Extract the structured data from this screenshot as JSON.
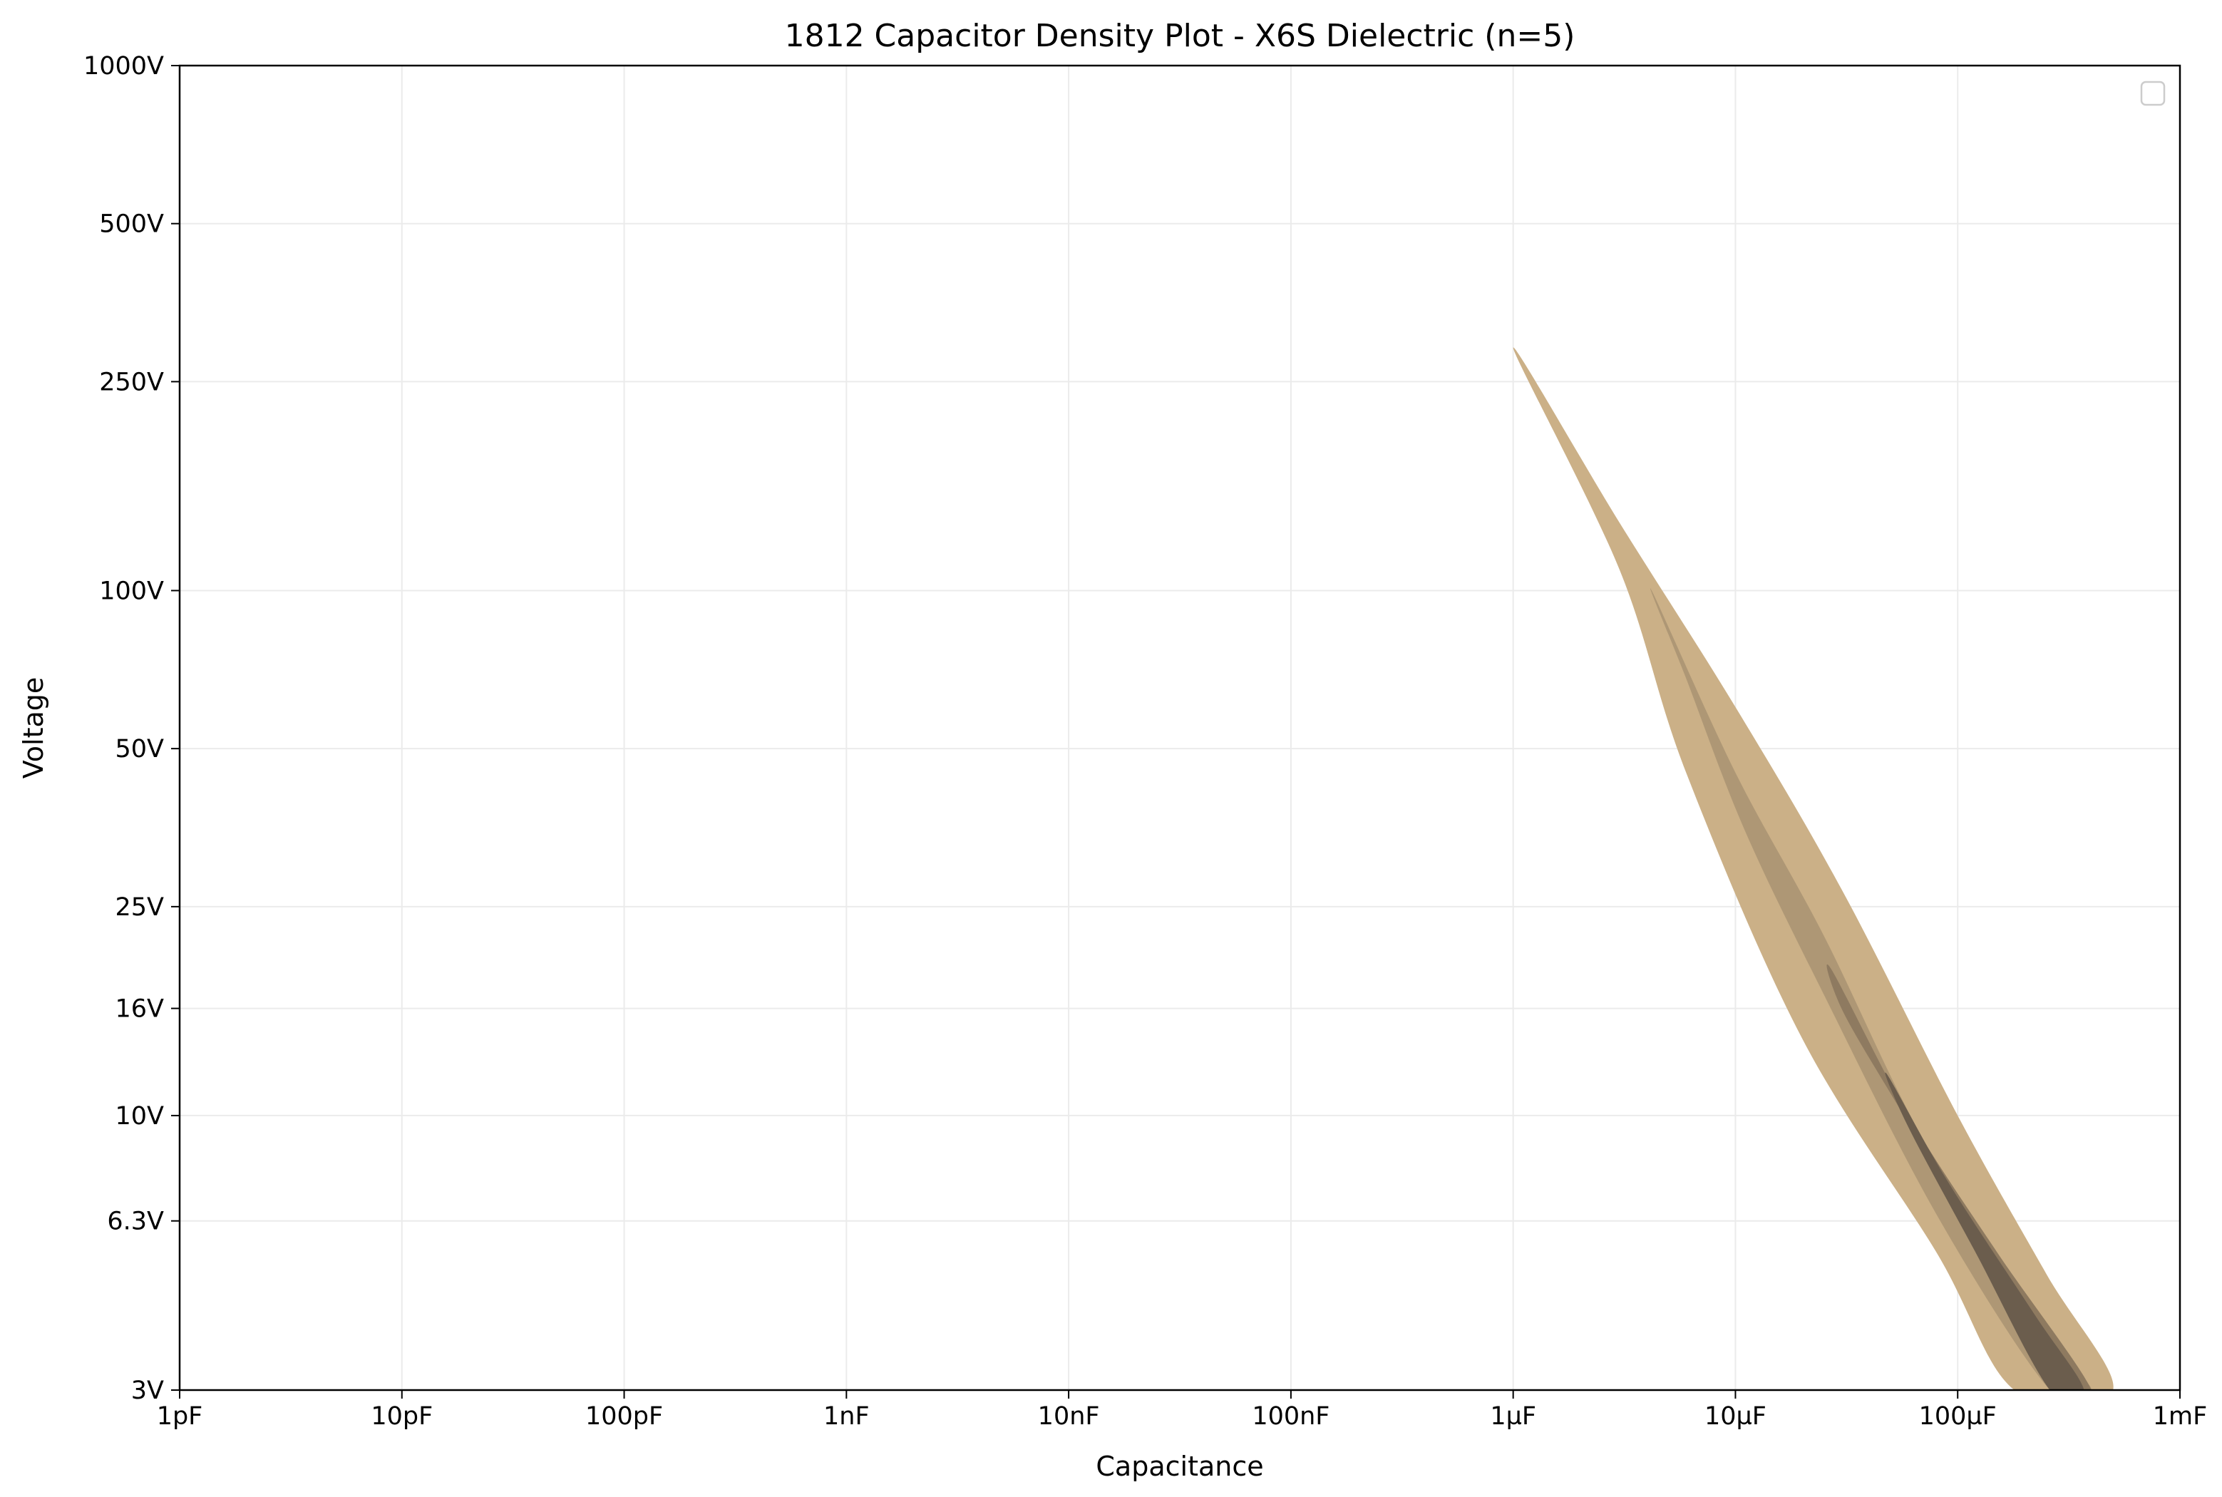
{
  "chart_data": {
    "type": "density",
    "title": "1812 Capacitor Density Plot - X6S Dielectric (n=5)",
    "xlabel": "Capacitance",
    "ylabel": "Voltage",
    "x_scale": "log",
    "y_scale": "log",
    "xlim_farads": [
      1e-12,
      0.001
    ],
    "ylim_volts": [
      3,
      1000
    ],
    "x_ticks": [
      {
        "value": 1e-12,
        "label": "1pF"
      },
      {
        "value": 1e-11,
        "label": "10pF"
      },
      {
        "value": 1e-10,
        "label": "100pF"
      },
      {
        "value": 1e-09,
        "label": "1nF"
      },
      {
        "value": 1e-08,
        "label": "10nF"
      },
      {
        "value": 1e-07,
        "label": "100nF"
      },
      {
        "value": 1e-06,
        "label": "1µF"
      },
      {
        "value": 1e-05,
        "label": "10µF"
      },
      {
        "value": 0.0001,
        "label": "100µF"
      },
      {
        "value": 0.001,
        "label": "1mF"
      }
    ],
    "y_ticks": [
      {
        "value": 3,
        "label": "3V"
      },
      {
        "value": 6.3,
        "label": "6.3V"
      },
      {
        "value": 10,
        "label": "10V"
      },
      {
        "value": 16,
        "label": "16V"
      },
      {
        "value": 25,
        "label": "25V"
      },
      {
        "value": 50,
        "label": "50V"
      },
      {
        "value": 100,
        "label": "100V"
      },
      {
        "value": 250,
        "label": "250V"
      },
      {
        "value": 500,
        "label": "500V"
      },
      {
        "value": 1000,
        "label": "1000V"
      }
    ],
    "grid": true,
    "legend": {
      "placement": "top-right",
      "entries": []
    },
    "density_levels": [
      {
        "level": 1,
        "color": "#cbb087",
        "outline": [
          [
            1e-06,
            290
          ],
          [
            3e-06,
            135
          ],
          [
            1e-05,
            60
          ],
          [
            3e-05,
            27
          ],
          [
            0.0001,
            10
          ],
          [
            0.00025,
            5
          ],
          [
            0.0005,
            3
          ],
          [
            0.00018,
            3
          ],
          [
            8e-05,
            5.5
          ],
          [
            2e-05,
            14
          ],
          [
            6e-06,
            45
          ],
          [
            3e-06,
            110
          ]
        ]
      },
      {
        "level": 2,
        "color": "#ae9775",
        "outline": [
          [
            4.2e-06,
            100
          ],
          [
            1e-05,
            45
          ],
          [
            2.5e-05,
            22
          ],
          [
            7e-05,
            9
          ],
          [
            0.00025,
            3.8
          ],
          [
            0.0004,
            3
          ],
          [
            0.00026,
            3
          ],
          [
            8e-05,
            6.5
          ],
          [
            2.5e-05,
            17
          ],
          [
            1.1e-05,
            35
          ],
          [
            6e-06,
            68
          ]
        ]
      },
      {
        "level": 3,
        "color": "#8e7a60",
        "outline": [
          [
            2.7e-05,
            19
          ],
          [
            6e-05,
            10
          ],
          [
            0.00015,
            5.5
          ],
          [
            0.0004,
            3
          ],
          [
            0.00028,
            3
          ],
          [
            0.00012,
            6
          ],
          [
            5e-05,
            11
          ],
          [
            3e-05,
            16
          ]
        ]
      },
      {
        "level": 4,
        "color": "#6b5d4d",
        "outline": [
          [
            4.8e-05,
            12
          ],
          [
            9e-05,
            7.5
          ],
          [
            0.00022,
            4.2
          ],
          [
            0.00037,
            3
          ],
          [
            0.00026,
            3
          ],
          [
            0.00012,
            5.5
          ],
          [
            6e-05,
            9.5
          ]
        ]
      }
    ]
  }
}
